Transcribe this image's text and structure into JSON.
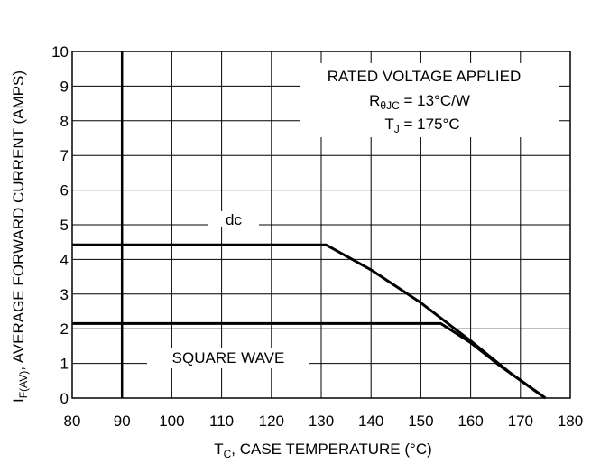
{
  "chart_data": {
    "type": "line",
    "title": "",
    "xlabel": {
      "main": "T",
      "sub": "C",
      "rest": ", CASE TEMPERATURE (°C)"
    },
    "ylabel": {
      "main": "I",
      "sub": "F(AV)",
      "rest": ", AVERAGE FORWARD CURRENT (AMPS)"
    },
    "xlim": [
      80,
      180
    ],
    "ylim": [
      0,
      10
    ],
    "xticks": [
      "80",
      "90",
      "100",
      "110",
      "120",
      "130",
      "140",
      "150",
      "160",
      "170",
      "180"
    ],
    "yticks": [
      "0",
      "1",
      "2",
      "3",
      "4",
      "5",
      "6",
      "7",
      "8",
      "9",
      "10"
    ],
    "grid": true,
    "reference_line_x": 90,
    "annotation": {
      "line1": "RATED VOLTAGE APPLIED",
      "line2": {
        "main": "R",
        "sub": "θJC",
        "rest": " = 13°C/W"
      },
      "line3": {
        "main": "T",
        "sub": "J",
        "rest": " = 175°C"
      }
    },
    "series": [
      {
        "name": "dc",
        "points": [
          [
            80,
            4.42
          ],
          [
            131,
            4.42
          ],
          [
            140,
            3.7
          ],
          [
            150,
            2.75
          ],
          [
            160,
            1.65
          ],
          [
            168,
            0.72
          ],
          [
            175,
            0
          ]
        ]
      },
      {
        "name": "SQUARE WAVE",
        "points": [
          [
            80,
            2.15
          ],
          [
            154,
            2.15
          ],
          [
            160,
            1.6
          ],
          [
            166,
            0.92
          ],
          [
            175,
            0
          ]
        ]
      }
    ]
  }
}
